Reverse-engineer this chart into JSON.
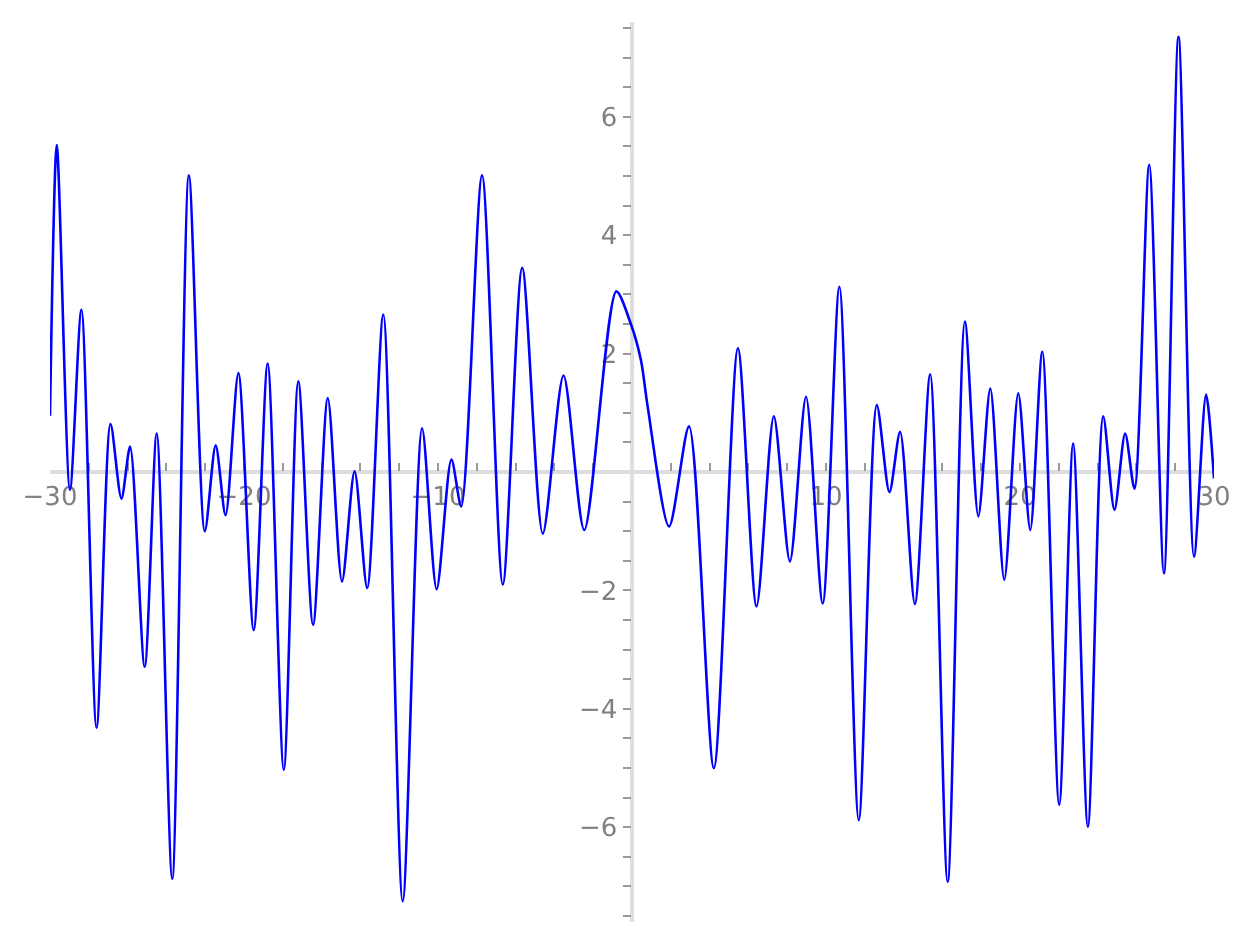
{
  "chart_data": {
    "type": "line",
    "x": [
      -30,
      -29.65,
      -28.97,
      -28.38,
      -27.6,
      -26.88,
      -26.32,
      -25.87,
      -25.12,
      -24.5,
      -23.7,
      -22.84,
      -22.02,
      -21.46,
      -20.95,
      -20.29,
      -19.5,
      -18.78,
      -17.95,
      -17.2,
      -16.44,
      -15.68,
      -14.95,
      -14.3,
      -13.65,
      -12.82,
      -11.82,
      -10.82,
      -10.07,
      -9.31,
      -8.8,
      -7.73,
      -6.66,
      -5.66,
      -4.6,
      -3.53,
      -2.46,
      -0.81,
      -0.05,
      0.46,
      0.81,
      1.91,
      2.94,
      4.22,
      5.46,
      6.42,
      7.31,
      8.14,
      8.97,
      9.83,
      10.69,
      11.69,
      12.62,
      13.27,
      13.82,
      14.58,
      15.37,
      16.27,
      17.16,
      17.85,
      18.47,
      19.19,
      19.91,
      20.53,
      21.15,
      22.02,
      22.74,
      23.5,
      24.29,
      24.87,
      25.42,
      25.9,
      26.66,
      27.42,
      28.17,
      28.97,
      29.59,
      30
    ],
    "series": [
      {
        "color": "#0000ff",
        "values": [
          0.95,
          5.52,
          -0.3,
          2.74,
          -4.32,
          0.81,
          -0.45,
          0.43,
          -3.29,
          0.65,
          -6.87,
          5.01,
          -1.0,
          0.45,
          -0.73,
          1.67,
          -2.67,
          1.83,
          -5.03,
          1.53,
          -2.58,
          1.25,
          -1.85,
          0.01,
          -1.96,
          2.66,
          -7.25,
          0.74,
          -1.98,
          0.21,
          -0.58,
          5.01,
          -1.9,
          3.45,
          -1.04,
          1.63,
          -0.98,
          3.05,
          2.49,
          1.89,
          1.1,
          -0.92,
          0.77,
          -5.0,
          2.09,
          -2.27,
          0.94,
          -1.51,
          1.27,
          -2.22,
          3.13,
          -5.88,
          1.13,
          -0.34,
          0.68,
          -2.23,
          1.65,
          -6.92,
          2.54,
          -0.75,
          1.41,
          -1.82,
          1.33,
          -0.98,
          2.03,
          -5.62,
          0.48,
          -5.99,
          0.94,
          -0.64,
          0.65,
          -0.28,
          5.19,
          -1.71,
          7.35,
          -1.43,
          1.31,
          -0.11
        ]
      }
    ],
    "xlim": [
      -30,
      30
    ],
    "ylim": [
      -7.6,
      7.6
    ],
    "xticks": [
      -30,
      {
        "value": -28,
        "label": null
      },
      {
        "value": -26,
        "label": null
      },
      {
        "value": -24,
        "label": null
      },
      {
        "value": -22,
        "label": null
      },
      -20,
      {
        "value": -18,
        "label": null
      },
      {
        "value": -16,
        "label": null
      },
      {
        "value": -14,
        "label": null
      },
      {
        "value": -12,
        "label": null
      },
      -10,
      {
        "value": -8,
        "label": null
      },
      {
        "value": -6,
        "label": null
      },
      {
        "value": -4,
        "label": null
      },
      {
        "value": -2,
        "label": null
      },
      {
        "value": 2,
        "label": null
      },
      {
        "value": 4,
        "label": null
      },
      {
        "value": 6,
        "label": null
      },
      {
        "value": 8,
        "label": null
      },
      10,
      {
        "value": 12,
        "label": null
      },
      {
        "value": 14,
        "label": null
      },
      {
        "value": 16,
        "label": null
      },
      {
        "value": 18,
        "label": null
      },
      20,
      {
        "value": 22,
        "label": null
      },
      {
        "value": 24,
        "label": null
      },
      {
        "value": 26,
        "label": null
      },
      {
        "value": 28,
        "label": null
      },
      30
    ],
    "yticks": [
      {
        "value": -7.5,
        "label": null
      },
      {
        "value": -7,
        "label": null
      },
      {
        "value": -6.5,
        "label": null
      },
      -6,
      {
        "value": -5.5,
        "label": null
      },
      {
        "value": -5,
        "label": null
      },
      {
        "value": -4.5,
        "label": null
      },
      -4,
      {
        "value": -3.5,
        "label": null
      },
      {
        "value": -3,
        "label": null
      },
      {
        "value": -2.5,
        "label": null
      },
      -2,
      {
        "value": -1.5,
        "label": null
      },
      {
        "value": -1,
        "label": null
      },
      {
        "value": -0.5,
        "label": null
      },
      {
        "value": 0.5,
        "label": null
      },
      {
        "value": 1,
        "label": null
      },
      {
        "value": 1.5,
        "label": null
      },
      2,
      {
        "value": 2.5,
        "label": null
      },
      {
        "value": 3,
        "label": null
      },
      {
        "value": 3.5,
        "label": null
      },
      4,
      {
        "value": 4.5,
        "label": null
      },
      {
        "value": 5,
        "label": null
      },
      {
        "value": 5.5,
        "label": null
      },
      6,
      {
        "value": 6.5,
        "label": null
      },
      {
        "value": 7,
        "label": null
      },
      {
        "value": 7.5,
        "label": null
      }
    ],
    "grid": false,
    "marker": "none",
    "line_style": "solid"
  }
}
